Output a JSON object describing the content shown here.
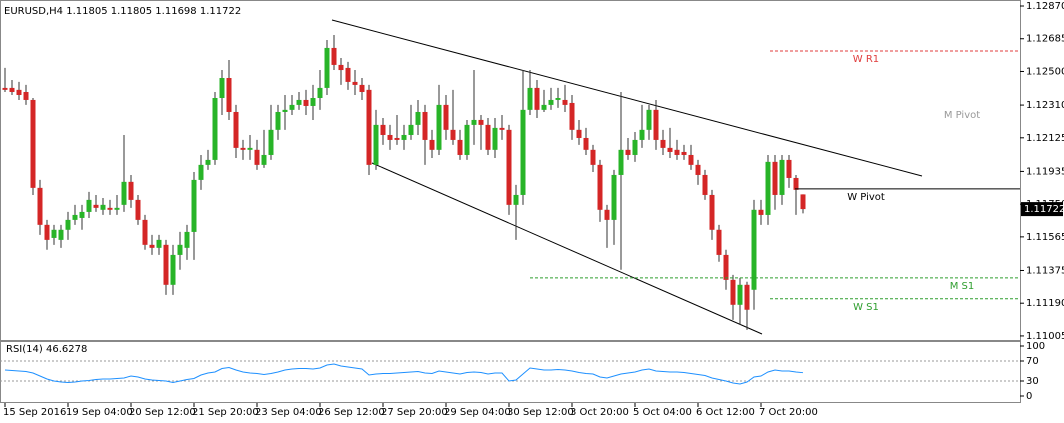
{
  "chart_data": [
    {
      "type": "candlestick",
      "symbol": "EURUSD,H4",
      "categories": [
        "15 Sep 2016",
        null,
        null,
        null,
        null,
        null,
        null,
        null,
        null,
        "19 Sep 04:00",
        null,
        null,
        null,
        null,
        null,
        null,
        null,
        null,
        "20 Sep 12:00",
        null,
        null,
        null,
        null,
        null,
        null,
        null,
        null,
        "21 Sep 20:00",
        null,
        null,
        null,
        null,
        null,
        null,
        null,
        null,
        "23 Sep 04:00",
        null,
        null,
        null,
        null,
        null,
        null,
        null,
        null,
        "26 Sep 12:00",
        null,
        null,
        null,
        null,
        null,
        null,
        null,
        null,
        "27 Sep 20:00",
        null,
        null,
        null,
        null,
        null,
        null,
        null,
        null,
        "29 Sep 04:00",
        null,
        null,
        null,
        null,
        null,
        null,
        null,
        null,
        "30 Sep 12:00",
        null,
        null,
        null,
        null,
        null,
        null,
        null,
        null,
        "3 Oct 20:00",
        null,
        null,
        null,
        null,
        null,
        null,
        null,
        null,
        "5 Oct 04:00",
        null,
        null,
        null,
        null,
        null,
        null,
        null,
        null,
        "6 Oct 12:00",
        null,
        null,
        null,
        null,
        null,
        null,
        null,
        null,
        "7 Oct 20:00",
        null,
        null,
        null,
        null,
        null,
        null
      ],
      "open": [
        1.12407,
        1.12407,
        1.12396,
        1.12384,
        1.12339,
        1.11842,
        1.11633,
        1.11559,
        1.11548,
        1.11605,
        1.11661,
        1.11672,
        1.11706,
        1.11746,
        1.11718,
        1.11729,
        1.11718,
        1.11746,
        1.11876,
        1.11774,
        1.11661,
        1.1152,
        1.11503,
        1.1152,
        1.11294,
        1.11463,
        1.11503,
        1.11593,
        1.11887,
        1.11972,
        1.12,
        1.1235,
        1.12463,
        1.12271,
        1.12068,
        1.12057,
        1.12057,
        1.11972,
        1.12028,
        1.1217,
        1.12271,
        1.12283,
        1.12311,
        1.12339,
        1.12305,
        1.1235,
        1.12407,
        1.12633,
        1.12537,
        1.1252,
        1.12441,
        1.12424,
        1.12396,
        1.11972,
        1.12198,
        1.12141,
        1.12124,
        1.12113,
        1.12141,
        1.12198,
        1.12271,
        1.12113,
        1.12057,
        1.12311,
        1.1217,
        1.12113,
        1.12028,
        1.12198,
        1.12226,
        1.12198,
        1.12057,
        1.12181,
        1.1217,
        1.11746,
        1.11802,
        1.12283,
        1.12407,
        1.12283,
        1.12311,
        1.12339,
        1.12339,
        1.12322,
        1.1217,
        1.12124,
        1.12057,
        1.11972,
        1.11718,
        1.11661,
        1.11915,
        1.12057,
        1.12028,
        1.12113,
        1.1217,
        1.12283,
        1.12113,
        1.12068,
        1.12057,
        1.12045,
        1.12028,
        1.11972,
        1.11915,
        1.11802,
        1.11605,
        1.11463,
        1.11322,
        1.11181,
        1.11294,
        1.11266,
        1.11718,
        1.11689,
        1.11989,
        1.11802,
        1.12,
        1.11898,
        1.11805
      ],
      "high": [
        1.1252,
        1.12452,
        1.12441,
        1.12424,
        1.1235,
        1.11887,
        1.11661,
        1.11633,
        1.11633,
        1.11706,
        1.11746,
        1.11746,
        1.11819,
        1.11802,
        1.11785,
        1.11774,
        1.11802,
        1.12141,
        1.11915,
        1.11802,
        1.11689,
        1.11576,
        1.11576,
        1.11548,
        1.1152,
        1.11593,
        1.11633,
        1.11932,
        1.12028,
        1.12057,
        1.12384,
        1.12508,
        1.12565,
        1.12311,
        1.12113,
        1.12141,
        1.12113,
        1.1217,
        1.12311,
        1.12311,
        1.12367,
        1.12367,
        1.12384,
        1.12396,
        1.12424,
        1.12508,
        1.12678,
        1.12706,
        1.12576,
        1.12554,
        1.12508,
        1.12463,
        1.12424,
        1.12283,
        1.12237,
        1.12198,
        1.12254,
        1.12198,
        1.12311,
        1.12339,
        1.12311,
        1.1217,
        1.12424,
        1.12367,
        1.12396,
        1.1217,
        1.12226,
        1.12508,
        1.12254,
        1.12237,
        1.12237,
        1.12254,
        1.12198,
        1.11859,
        1.12508,
        1.12508,
        1.12452,
        1.12396,
        1.12407,
        1.12407,
        1.12424,
        1.12367,
        1.12226,
        1.12181,
        1.12085,
        1.12,
        1.11746,
        1.11944,
        1.12384,
        1.12124,
        1.12158,
        1.12311,
        1.12311,
        1.12339,
        1.1217,
        1.12181,
        1.12113,
        1.12085,
        1.12085,
        1.12,
        1.11944,
        1.11831,
        1.11633,
        1.11492,
        1.1135,
        1.11333,
        1.11311,
        1.11774,
        1.11774,
        1.12028,
        1.12028,
        1.12028,
        1.12028,
        1.11915,
        1.11805
      ],
      "low": [
        1.12384,
        1.12367,
        1.12339,
        1.12311,
        1.11802,
        1.11576,
        1.11492,
        1.1152,
        1.11503,
        1.11548,
        1.11633,
        1.11605,
        1.11672,
        1.11706,
        1.11689,
        1.11689,
        1.11689,
        1.11706,
        1.11729,
        1.11633,
        1.11492,
        1.11463,
        1.11463,
        1.11237,
        1.11237,
        1.11379,
        1.11435,
        1.11435,
        1.11831,
        1.11944,
        1.11972,
        1.12254,
        1.12226,
        1.12011,
        1.12,
        1.12,
        1.11944,
        1.11955,
        1.12,
        1.12113,
        1.1217,
        1.12254,
        1.12283,
        1.12254,
        1.12226,
        1.12283,
        1.12367,
        1.12508,
        1.12424,
        1.12396,
        1.12367,
        1.12339,
        1.11915,
        1.11944,
        1.12085,
        1.12057,
        1.12085,
        1.12057,
        1.12113,
        1.12141,
        1.11972,
        1.12011,
        1.12028,
        1.12113,
        1.12085,
        1.12,
        1.12,
        1.12085,
        1.12057,
        1.12028,
        1.12011,
        1.12113,
        1.11689,
        1.11548,
        1.11746,
        1.12254,
        1.12237,
        1.12271,
        1.12283,
        1.12294,
        1.12271,
        1.12113,
        1.12085,
        1.12028,
        1.11932,
        1.1165,
        1.11503,
        1.1152,
        1.11379,
        1.12,
        1.11989,
        1.12068,
        1.12113,
        1.12057,
        1.12028,
        1.12011,
        1.12,
        1.12,
        1.11944,
        1.11859,
        1.11774,
        1.11548,
        1.11424,
        1.11266,
        1.11096,
        1.11068,
        1.11039,
        1.11153,
        1.11633,
        1.11633,
        1.11718,
        1.11746,
        1.11842,
        1.11689,
        1.11698
      ],
      "close": [
        1.12396,
        1.12384,
        1.12367,
        1.12339,
        1.11842,
        1.11633,
        1.11548,
        1.11605,
        1.11605,
        1.11661,
        1.11689,
        1.11706,
        1.11774,
        1.11729,
        1.11746,
        1.11718,
        1.11729,
        1.11876,
        1.11774,
        1.11661,
        1.1152,
        1.11503,
        1.11548,
        1.11294,
        1.11463,
        1.1152,
        1.11593,
        1.11887,
        1.11972,
        1.12,
        1.1235,
        1.12463,
        1.12271,
        1.12068,
        1.12057,
        1.12068,
        1.11972,
        1.12028,
        1.1217,
        1.12271,
        1.12283,
        1.12311,
        1.12339,
        1.12305,
        1.1235,
        1.12407,
        1.12633,
        1.12537,
        1.12508,
        1.12441,
        1.12424,
        1.12384,
        1.11972,
        1.12198,
        1.12141,
        1.12113,
        1.12113,
        1.12141,
        1.12198,
        1.12271,
        1.12113,
        1.12057,
        1.12311,
        1.1217,
        1.12113,
        1.12028,
        1.12198,
        1.12226,
        1.12198,
        1.12057,
        1.12181,
        1.1217,
        1.11746,
        1.11802,
        1.12283,
        1.12407,
        1.12283,
        1.12311,
        1.12339,
        1.1235,
        1.12311,
        1.1217,
        1.12124,
        1.12057,
        1.11972,
        1.11718,
        1.11661,
        1.11915,
        1.12057,
        1.12028,
        1.12113,
        1.1217,
        1.12283,
        1.12113,
        1.12068,
        1.12045,
        1.12028,
        1.12028,
        1.11972,
        1.11915,
        1.11802,
        1.11605,
        1.11463,
        1.11322,
        1.11181,
        1.11294,
        1.11153,
        1.11718,
        1.11689,
        1.11989,
        1.11802,
        1.12,
        1.11898,
        1.11831,
        1.11722
      ],
      "up_color": "#28b428",
      "down_color": "#d42626",
      "wick_color": "#333333",
      "ylim": [
        1.10982,
        1.12904
      ],
      "yticks": [
        {
          "value": 1.1287,
          "label": "1.12870"
        },
        1.12685,
        {
          "value": 1.125,
          "label": "1.12500"
        },
        {
          "value": 1.1231,
          "label": "1.12310"
        },
        1.12125,
        1.11935,
        {
          "value": 1.1175,
          "label": "1.11750"
        },
        1.11565,
        1.11375,
        {
          "value": 1.1119,
          "label": "1.11190"
        },
        1.11005
      ],
      "levels": [
        {
          "name": "W R1",
          "value": 1.12616,
          "color": "#e03c3c",
          "style": "dashed"
        },
        {
          "name": "W Pivot",
          "value": 1.11836,
          "color": "#000000",
          "style": "solid"
        },
        {
          "name": "M S1",
          "value": 1.11333,
          "color": "#2e9e2e",
          "style": "dashed"
        },
        {
          "name": "W S1",
          "value": 1.11215,
          "color": "#2e9e2e",
          "style": "dashed"
        }
      ],
      "annotations": [
        "M Pivot"
      ]
    },
    {
      "type": "line",
      "title": "RSI(14)",
      "color": "#1e90ff",
      "values": [
        52,
        51,
        50,
        49,
        46,
        40,
        34,
        30,
        28,
        27,
        28,
        30,
        31,
        33,
        34,
        34,
        35,
        36,
        40,
        38,
        34,
        32,
        31,
        30,
        27,
        30,
        33,
        35,
        42,
        46,
        48,
        55,
        57,
        52,
        48,
        46,
        45,
        43,
        45,
        48,
        52,
        54,
        55,
        55,
        54,
        56,
        62,
        64,
        60,
        58,
        56,
        54,
        42,
        44,
        45,
        45,
        46,
        47,
        48,
        49,
        46,
        45,
        50,
        48,
        46,
        44,
        47,
        48,
        47,
        44,
        46,
        46,
        30,
        32,
        44,
        56,
        54,
        52,
        52,
        53,
        52,
        50,
        47,
        45,
        44,
        38,
        36,
        40,
        44,
        46,
        48,
        52,
        54,
        50,
        49,
        48,
        48,
        47,
        45,
        43,
        41,
        36,
        33,
        30,
        26,
        24,
        28,
        38,
        40,
        48,
        52,
        50,
        50,
        48,
        46.6278
      ],
      "ylim": [
        -12,
        110
      ],
      "yticks": [
        100,
        70,
        30,
        0
      ],
      "levels": [
        70,
        30
      ]
    }
  ]
}
